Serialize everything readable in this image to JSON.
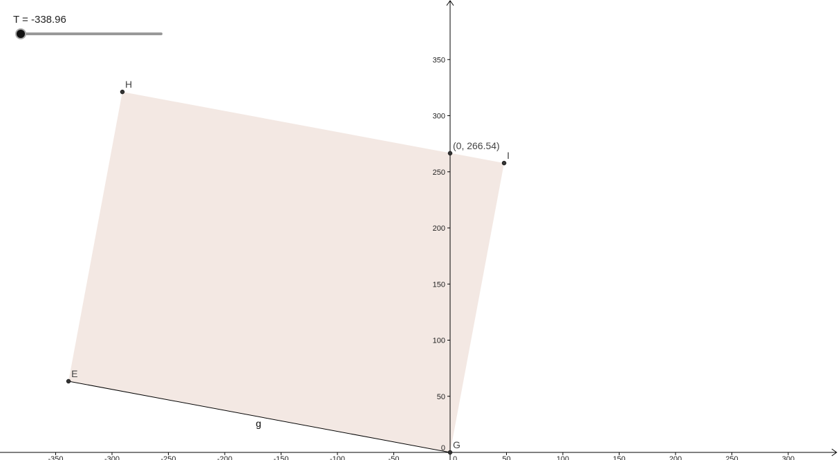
{
  "slider": {
    "label": "T = -338.96"
  },
  "axes": {
    "xticks": [
      -350,
      -300,
      -250,
      -200,
      -150,
      -100,
      -50,
      0,
      50,
      100,
      150,
      200,
      250,
      300
    ],
    "yticks": [
      0,
      50,
      100,
      150,
      200,
      250,
      300,
      350
    ]
  },
  "points": [
    {
      "label": "E",
      "x": -338.6,
      "y": 63.4
    },
    {
      "label": "H",
      "x": -290.8,
      "y": 321.2
    },
    {
      "label": "I",
      "x": 47.9,
      "y": 257.8
    },
    {
      "label": "G",
      "x": 0,
      "y": 0
    },
    {
      "label": "(0, 266.54)",
      "x": 0,
      "y": 266.54
    }
  ],
  "segment": {
    "label": "g"
  }
}
